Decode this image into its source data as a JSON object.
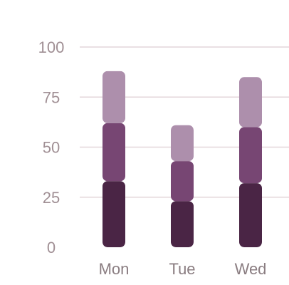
{
  "chart_data": {
    "type": "bar",
    "stacked": true,
    "categories": [
      "Mon",
      "Tue",
      "Wed"
    ],
    "series": [
      {
        "values": [
          33,
          23,
          32
        ],
        "color": "#4a2545"
      },
      {
        "values": [
          29,
          20,
          28
        ],
        "color": "#774673"
      },
      {
        "values": [
          26,
          18,
          25
        ],
        "color": "#ad8fac"
      }
    ],
    "y_ticks": [
      0,
      25,
      50,
      75,
      100
    ],
    "ylim": [
      0,
      100
    ],
    "grid": true,
    "legend": "none"
  }
}
